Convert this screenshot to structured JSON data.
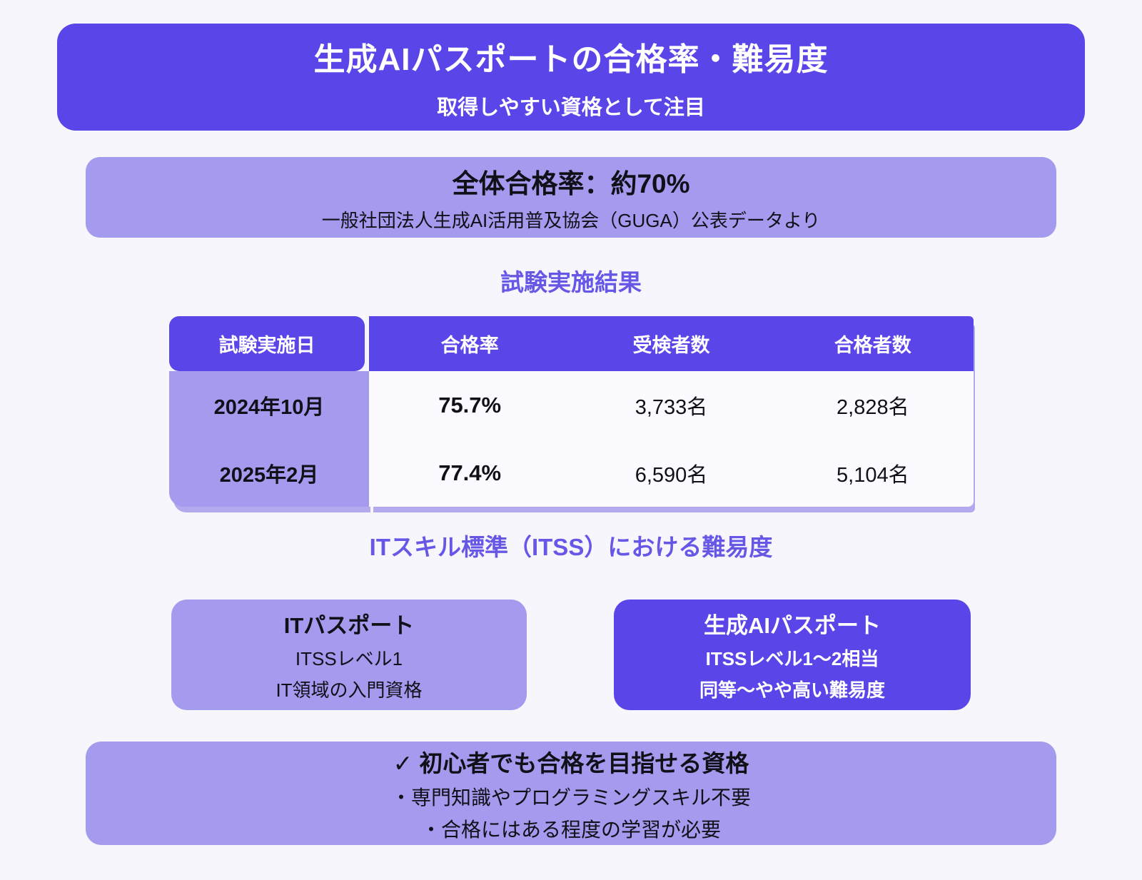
{
  "colors": {
    "primary_purple": "#5A46E8",
    "light_purple": "#A49AEE",
    "page_background": "#F7F6FC",
    "table_body_white": "#FBFAFE",
    "section_title_purple": "#6757E7",
    "table_shadow": "#B3A9EF"
  },
  "banner": {
    "title": "生成AIパスポートの合格率・難易度",
    "subtitle": "取得しやすい資格として注目"
  },
  "overall": {
    "title": "全体合格率：約70%",
    "source": "一般社団法人生成AI活用普及協会（GUGA）公表データより"
  },
  "results": {
    "section_title": "試験実施結果",
    "table": {
      "headers": {
        "date": "試験実施日",
        "pass_rate": "合格率",
        "examinees": "受検者数",
        "passers": "合格者数"
      },
      "rows": [
        {
          "date": "2024年10月",
          "pass_rate": "75.7%",
          "examinees": "3,733名",
          "passers": "2,828名"
        },
        {
          "date": "2025年2月",
          "pass_rate": "77.4%",
          "examinees": "6,590名",
          "passers": "5,104名"
        }
      ]
    }
  },
  "difficulty": {
    "section_title": "ITスキル標準（ITSS）における難易度",
    "left_card": {
      "title": "ITパスポート",
      "line1": "ITSSレベル1",
      "line2": "IT領域の入門資格"
    },
    "right_card": {
      "title": "生成AIパスポート",
      "line1": "ITSSレベル1〜2相当",
      "line2": "同等〜やや高い難易度"
    }
  },
  "summary": {
    "title": "✓ 初心者でも合格を目指せる資格",
    "points": [
      "・専門知識やプログラミングスキル不要",
      "・合格にはある程度の学習が必要"
    ]
  }
}
